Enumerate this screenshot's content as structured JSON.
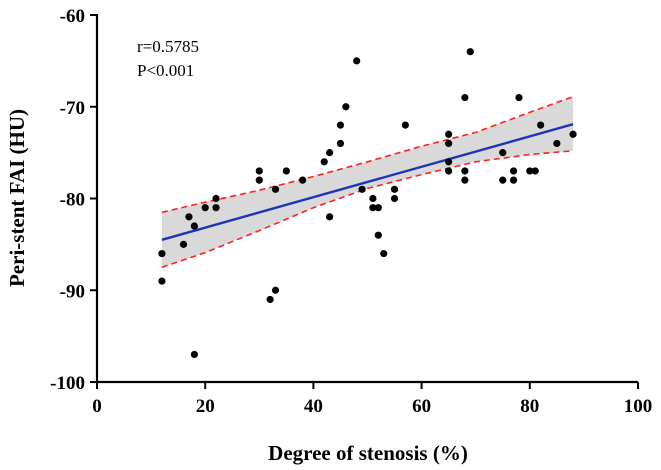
{
  "chart_data": {
    "type": "scatter",
    "xlabel": "Degree of stenosis (%)",
    "ylabel": "Peri-stent FAI (HU)",
    "xlim": [
      0,
      100
    ],
    "ylim": [
      -100,
      -60
    ],
    "xticks": [
      "0",
      "20",
      "40",
      "60",
      "80",
      "100"
    ],
    "yticks": [
      "-60",
      "-70",
      "-80",
      "-90",
      "-100"
    ],
    "annotations": [
      "r=0.5785",
      "P<0.001"
    ],
    "points": [
      [
        12,
        -86
      ],
      [
        12,
        -89
      ],
      [
        16,
        -85
      ],
      [
        17,
        -82
      ],
      [
        18,
        -83
      ],
      [
        18,
        -97
      ],
      [
        20,
        -81
      ],
      [
        22,
        -80
      ],
      [
        22,
        -81
      ],
      [
        30,
        -77
      ],
      [
        30,
        -78
      ],
      [
        32,
        -91
      ],
      [
        33,
        -90
      ],
      [
        33,
        -79
      ],
      [
        35,
        -77
      ],
      [
        38,
        -78
      ],
      [
        42,
        -76
      ],
      [
        43,
        -75
      ],
      [
        43,
        -82
      ],
      [
        45,
        -72
      ],
      [
        45,
        -74
      ],
      [
        46,
        -70
      ],
      [
        48,
        -65
      ],
      [
        49,
        -79
      ],
      [
        51,
        -80
      ],
      [
        51,
        -81
      ],
      [
        52,
        -81
      ],
      [
        52,
        -84
      ],
      [
        53,
        -86
      ],
      [
        55,
        -79
      ],
      [
        55,
        -80
      ],
      [
        57,
        -72
      ],
      [
        65,
        -73
      ],
      [
        65,
        -74
      ],
      [
        65,
        -76
      ],
      [
        65,
        -77
      ],
      [
        68,
        -69
      ],
      [
        68,
        -77
      ],
      [
        68,
        -78
      ],
      [
        69,
        -64
      ],
      [
        75,
        -75
      ],
      [
        75,
        -78
      ],
      [
        77,
        -77
      ],
      [
        77,
        -78
      ],
      [
        78,
        -69
      ],
      [
        80,
        -77
      ],
      [
        81,
        -77
      ],
      [
        82,
        -72
      ],
      [
        85,
        -74
      ],
      [
        88,
        -73
      ]
    ],
    "regression": {
      "x": [
        12,
        88
      ],
      "y": [
        -84.5,
        -71.9
      ]
    },
    "confidence_band": {
      "x": [
        12,
        20,
        30,
        40,
        50,
        60,
        70,
        80,
        88
      ],
      "upper": [
        -81.5,
        -80.4,
        -79.1,
        -77.6,
        -76.0,
        -74.3,
        -72.8,
        -70.6,
        -68.9
      ],
      "lower": [
        -87.5,
        -85.9,
        -83.5,
        -81.0,
        -78.9,
        -77.4,
        -76.0,
        -75.2,
        -74.8
      ]
    },
    "grid": false,
    "legend": "none",
    "colors": {
      "points": "#000000",
      "regression": "#1f33b8",
      "band_fill": "#d9d9d9",
      "band_edge": "#ff2020",
      "axis": "#000000"
    }
  }
}
